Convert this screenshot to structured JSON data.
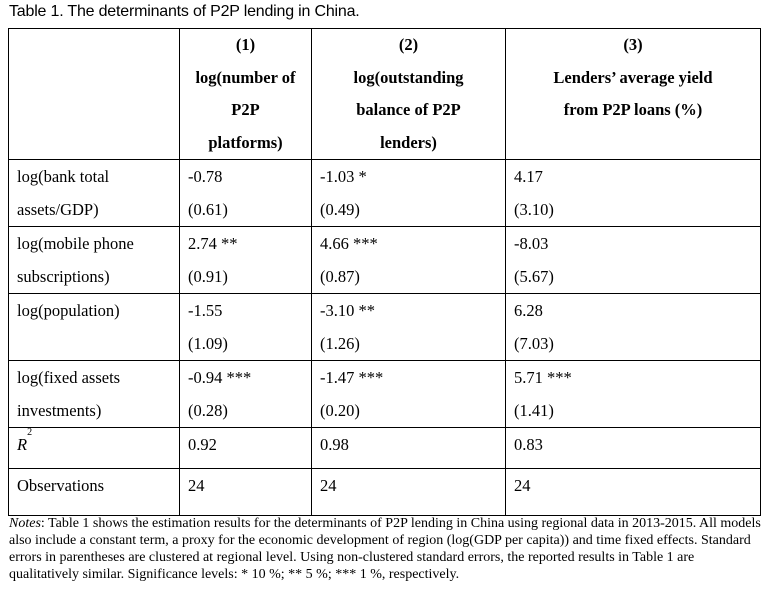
{
  "caption": "Table 1. The determinants of P2P lending in China.",
  "headers": [
    {
      "num": "(1)",
      "label": [
        "log(number of",
        "P2P",
        "platforms)"
      ]
    },
    {
      "num": "(2)",
      "label": [
        "log(outstanding",
        "balance of P2P",
        "lenders)"
      ]
    },
    {
      "num": "(3)",
      "label": [
        "Lenders’ average yield",
        "from P2P loans (%)"
      ]
    }
  ],
  "rows": [
    {
      "label": [
        "log(bank total",
        "assets/GDP)"
      ],
      "cells": [
        [
          "-0.78",
          "(0.61)"
        ],
        [
          "-1.03 *",
          "(0.49)"
        ],
        [
          "4.17",
          "(3.10)"
        ]
      ]
    },
    {
      "label": [
        "log(mobile phone",
        "subscriptions)"
      ],
      "cells": [
        [
          "2.74 **",
          "(0.91)"
        ],
        [
          "4.66 ***",
          "(0.87)"
        ],
        [
          "-8.03",
          "(5.67)"
        ]
      ]
    },
    {
      "label": [
        "log(population)",
        ""
      ],
      "cells": [
        [
          "-1.55",
          "(1.09)"
        ],
        [
          "-3.10 **",
          "(1.26)"
        ],
        [
          "6.28",
          "(7.03)"
        ]
      ]
    },
    {
      "label": [
        "log(fixed assets",
        "investments)"
      ],
      "cells": [
        [
          "-0.94 ***",
          "(0.28)"
        ],
        [
          "-1.47 ***",
          "(0.20)"
        ],
        [
          "5.71 ***",
          "(1.41)"
        ]
      ]
    }
  ],
  "r2": {
    "label": "R",
    "sup": "2",
    "values": [
      "0.92",
      "0.98",
      "0.83"
    ]
  },
  "observations": {
    "label": "Observations",
    "values": [
      "24",
      "24",
      "24"
    ]
  },
  "notes": {
    "lead": "Notes",
    "text": ": Table 1 shows the estimation results for the determinants of P2P lending in China using regional data in 2013-2015. All models also include a constant term, a proxy for the economic development of region (log(GDP per capita)) and time fixed effects. Standard errors in parentheses are clustered at regional level. Using non-clustered standard errors, the reported results in Table 1 are qualitatively similar. Significance levels: * 10 %; ** 5 %; *** 1 %, respectively."
  }
}
